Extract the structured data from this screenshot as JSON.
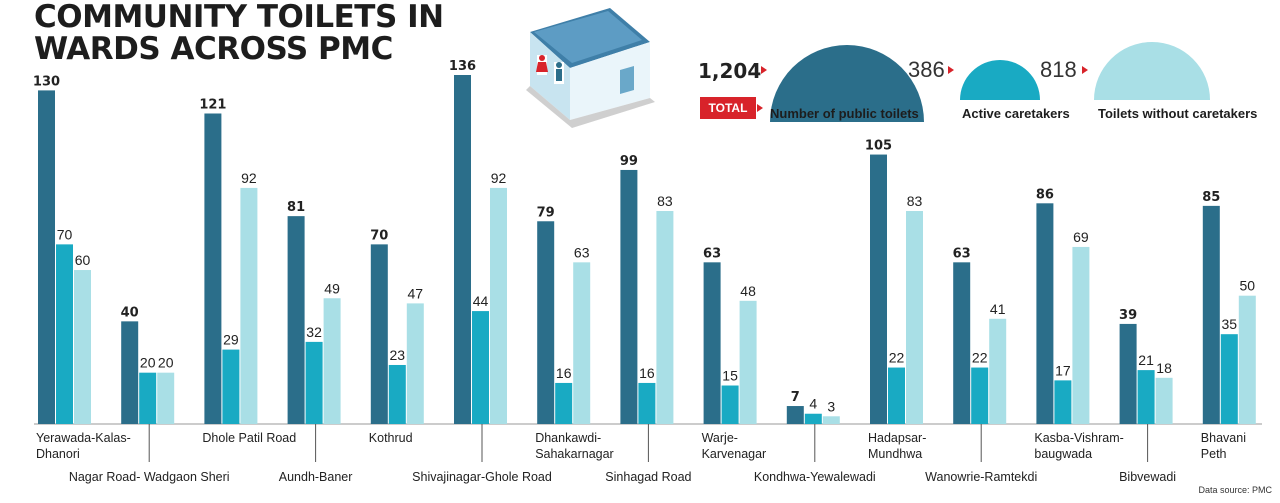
{
  "title_lines": [
    "COMMUNITY TOILETS IN",
    "WARDS ACROSS PMC"
  ],
  "summary": {
    "badge": "TOTAL",
    "items": [
      {
        "value": "1,204",
        "label": "Number of public toilets",
        "color": "#2b6e8a"
      },
      {
        "value": "386",
        "label": "Active caretakers",
        "color": "#19aac3"
      },
      {
        "value": "818",
        "label": "Toilets without caretakers",
        "color": "#a9dfe6"
      }
    ]
  },
  "source": "Data source: PMC",
  "colors": {
    "toilets": "#2b6e8a",
    "caretakers": "#19aac3",
    "without": "#a9dfe6",
    "accent": "#d8232a"
  },
  "chart_data": {
    "type": "bar",
    "ylim": [
      0,
      136
    ],
    "categories": [
      [
        "Yerawada-Kalas-",
        "Dhanori"
      ],
      [
        "Nagar Road- Wadgaon Sheri"
      ],
      [
        "Dhole Patil Road"
      ],
      [
        "Aundh-Baner"
      ],
      [
        "Kothrud"
      ],
      [
        "Shivajinagar-Ghole Road"
      ],
      [
        "Dhankawdi-",
        "Sahakarnagar"
      ],
      [
        "Sinhagad Road"
      ],
      [
        "Warje-",
        "Karvenagar"
      ],
      [
        "Kondhwa-Yewalewadi"
      ],
      [
        "Hadapsar-",
        "Mundhwa"
      ],
      [
        "Wanowrie-Ramtekdi"
      ],
      [
        "Kasba-Vishram-",
        "baugwada"
      ],
      [
        "Bibvewadi"
      ],
      [
        "Bhavani",
        "Peth"
      ]
    ],
    "series": [
      {
        "name": "Number of public toilets",
        "values": [
          130,
          40,
          121,
          81,
          70,
          136,
          79,
          99,
          63,
          7,
          105,
          63,
          86,
          39,
          85
        ]
      },
      {
        "name": "Active caretakers",
        "values": [
          70,
          20,
          29,
          32,
          23,
          44,
          16,
          16,
          15,
          4,
          22,
          22,
          17,
          21,
          35
        ]
      },
      {
        "name": "Toilets without caretakers",
        "values": [
          60,
          20,
          92,
          49,
          47,
          92,
          63,
          83,
          48,
          3,
          83,
          41,
          69,
          18,
          50
        ]
      }
    ]
  }
}
